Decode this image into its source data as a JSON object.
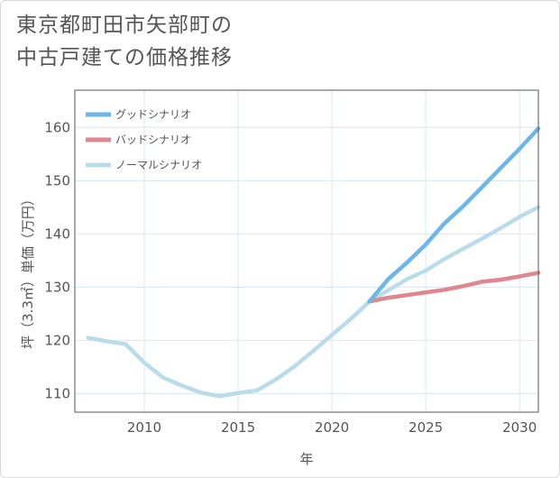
{
  "title_lines": [
    "東京都町田市矢部町の",
    "中古戸建ての価格推移"
  ],
  "chart_data": {
    "type": "line",
    "title": "東京都町田市矢部町の中古戸建ての価格推移",
    "xlabel": "年",
    "ylabel": "坪（3.3㎡）単価（万円）",
    "xlim": [
      2006.3,
      2031
    ],
    "ylim": [
      106.5,
      167
    ],
    "x_ticks": [
      2010,
      2015,
      2020,
      2025,
      2030
    ],
    "y_ticks": [
      110,
      120,
      130,
      140,
      150,
      160
    ],
    "grid": true,
    "legend_position": "top-left",
    "series": [
      {
        "name": "グッドシナリオ",
        "color": "#6cb6e8",
        "x": [
          2022,
          2023,
          2024,
          2025,
          2026,
          2027,
          2028,
          2029,
          2030,
          2031
        ],
        "y": [
          127.3,
          131.5,
          134.6,
          138.0,
          142.0,
          145.2,
          148.8,
          152.4,
          156.0,
          159.8
        ]
      },
      {
        "name": "バッドシナリオ",
        "color": "#e0868e",
        "x": [
          2022,
          2023,
          2024,
          2025,
          2026,
          2027,
          2028,
          2029,
          2030,
          2031
        ],
        "y": [
          127.3,
          128.0,
          128.5,
          129.0,
          129.5,
          130.2,
          131.0,
          131.4,
          132.0,
          132.7
        ]
      },
      {
        "name": "ノーマルシナリオ",
        "color": "#b9dcec",
        "x": [
          2007,
          2008,
          2009,
          2010,
          2011,
          2012,
          2013,
          2014,
          2015,
          2016,
          2017,
          2018,
          2019,
          2020,
          2021,
          2022,
          2023,
          2024,
          2025,
          2026,
          2027,
          2028,
          2029,
          2030,
          2031
        ],
        "y": [
          120.5,
          119.8,
          119.3,
          115.8,
          113.0,
          111.5,
          110.2,
          109.5,
          110.1,
          110.6,
          112.6,
          115.1,
          118.0,
          121.0,
          124.0,
          127.3,
          129.4,
          131.5,
          133.1,
          135.3,
          137.2,
          139.1,
          141.1,
          143.2,
          145.0
        ]
      }
    ]
  }
}
